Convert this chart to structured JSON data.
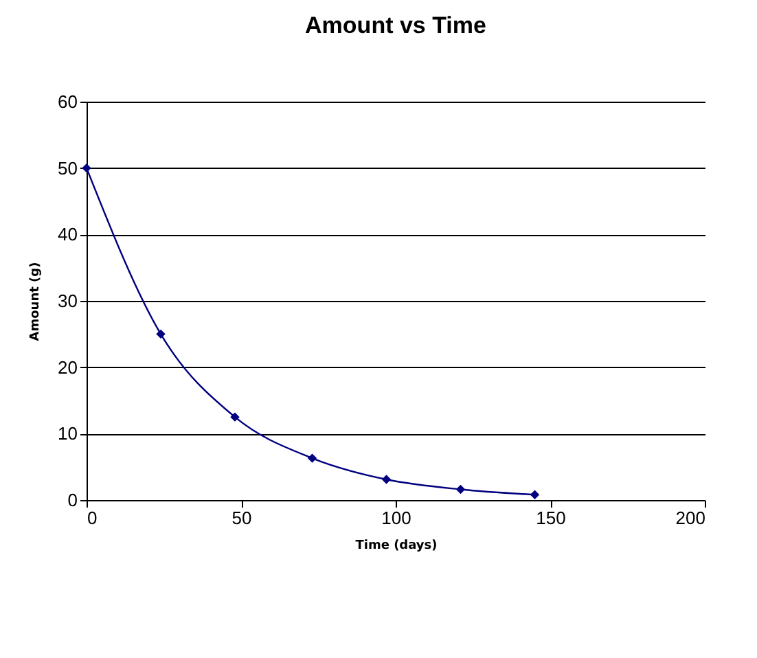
{
  "chart_data": {
    "type": "line",
    "title": "Amount vs Time",
    "xlabel": "Time (days)",
    "ylabel": "Amount (g)",
    "x": [
      0,
      24,
      48,
      73,
      97,
      121,
      145
    ],
    "values": [
      50,
      25,
      12.5,
      6.3,
      3.1,
      1.6,
      0.8
    ],
    "color": "#000080",
    "xlim": [
      0,
      200
    ],
    "xticks": [
      0,
      50,
      100,
      150,
      200
    ],
    "ylim": [
      0,
      60
    ],
    "yticks": [
      0,
      10,
      20,
      30,
      40,
      50,
      60
    ],
    "grid": "y",
    "marker": "diamond",
    "line_style": "solid"
  }
}
